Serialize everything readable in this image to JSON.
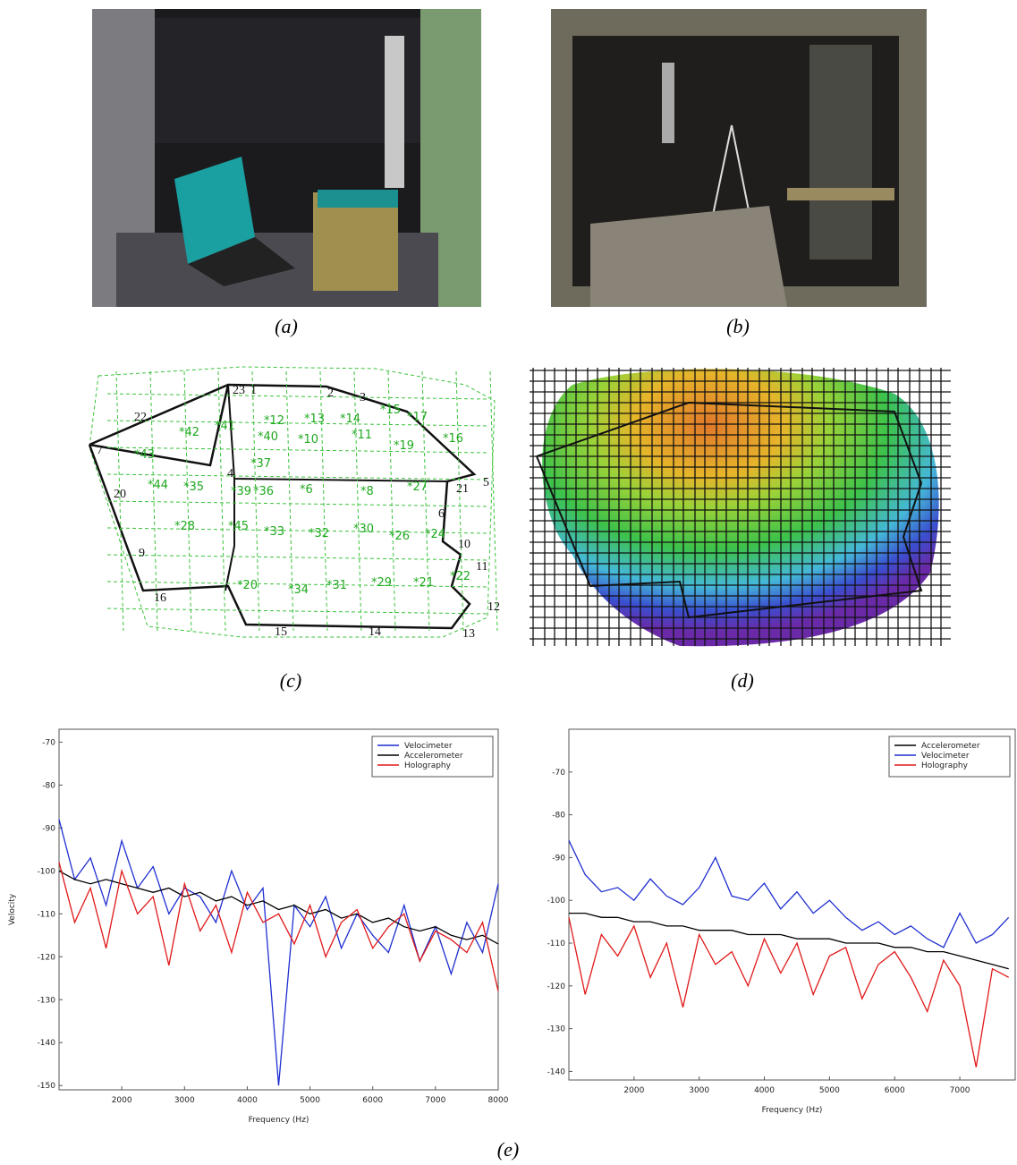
{
  "figure": {
    "panels": [
      {
        "caption": "(a)"
      },
      {
        "caption": "(b)"
      },
      {
        "caption": "(c)",
        "point_labels": [
          "22",
          "23",
          "1",
          "2",
          "3",
          "4",
          "5",
          "6",
          "7",
          "9",
          "10",
          "11",
          "12",
          "13",
          "14",
          "15",
          "16",
          "20",
          "21"
        ],
        "sensor_labels": [
          "*42",
          "*41",
          "*12",
          "*13",
          "*14",
          "*15",
          "*17",
          "*16",
          "*43",
          "*40",
          "*10",
          "*11",
          "*19",
          "*37",
          "*44",
          "*35",
          "*39",
          "*36",
          "*6",
          "*8",
          "*27",
          "*28",
          "*45",
          "*33",
          "*32",
          "*30",
          "*26",
          "*24",
          "*20",
          "*34",
          "*31",
          "*29",
          "*21",
          "*22"
        ]
      },
      {
        "caption": "(d)"
      }
    ],
    "caption": "(e)"
  },
  "chart_data": [
    {
      "type": "line",
      "ylabel": "Velocity",
      "xlabel": "Frequency (Hz)",
      "xlim": [
        1000,
        8000
      ],
      "ylim": [
        -151,
        -67
      ],
      "xticks": [
        2000,
        3000,
        4000,
        5000,
        6000,
        7000,
        8000
      ],
      "yticks": [
        -70,
        -80,
        -90,
        -100,
        -110,
        -120,
        -130,
        -140,
        -150
      ],
      "legend": "upper right",
      "x": [
        1000,
        1250,
        1500,
        1750,
        2000,
        2250,
        2500,
        2750,
        3000,
        3250,
        3500,
        3750,
        4000,
        4250,
        4500,
        4750,
        5000,
        5250,
        5500,
        5750,
        6000,
        6250,
        6500,
        6750,
        7000,
        7250,
        7500,
        7750,
        8000
      ],
      "series": [
        {
          "name": "Velocimeter",
          "color": "#1f2fd0",
          "values": [
            -88,
            -102,
            -97,
            -108,
            -93,
            -104,
            -99,
            -110,
            -104,
            -106,
            -112,
            -100,
            -109,
            -104,
            -150,
            -108,
            -113,
            -106,
            -118,
            -110,
            -115,
            -119,
            -108,
            -121,
            -113,
            -124,
            -112,
            -119,
            -103
          ]
        },
        {
          "name": "Accelerometer",
          "color": "#000000",
          "values": [
            -100,
            -102,
            -103,
            -102,
            -103,
            -104,
            -105,
            -104,
            -106,
            -105,
            -107,
            -106,
            -108,
            -107,
            -109,
            -108,
            -110,
            -109,
            -111,
            -110,
            -112,
            -111,
            -113,
            -114,
            -113,
            -115,
            -116,
            -115,
            -117
          ]
        },
        {
          "name": "Holography",
          "color": "#e01818",
          "values": [
            -98,
            -112,
            -104,
            -118,
            -100,
            -110,
            -106,
            -122,
            -103,
            -114,
            -108,
            -119,
            -105,
            -112,
            -110,
            -117,
            -108,
            -120,
            -112,
            -109,
            -118,
            -113,
            -110,
            -121,
            -114,
            -116,
            -119,
            -112,
            -128
          ]
        }
      ]
    },
    {
      "type": "line",
      "xlabel": "Frequency (Hz)",
      "xlim": [
        1000,
        7850
      ],
      "ylim": [
        -142,
        -60
      ],
      "xticks": [
        2000,
        3000,
        4000,
        5000,
        6000,
        7000
      ],
      "yticks": [
        -70,
        -80,
        -90,
        -100,
        -110,
        -120,
        -130,
        -140
      ],
      "legend": "upper right",
      "x": [
        1000,
        1250,
        1500,
        1750,
        2000,
        2250,
        2500,
        2750,
        3000,
        3250,
        3500,
        3750,
        4000,
        4250,
        4500,
        4750,
        5000,
        5250,
        5500,
        5750,
        6000,
        6250,
        6500,
        6750,
        7000,
        7250,
        7500,
        7750
      ],
      "series": [
        {
          "name": "Accelerometer",
          "color": "#000000",
          "values": [
            -103,
            -103,
            -104,
            -104,
            -105,
            -105,
            -106,
            -106,
            -107,
            -107,
            -107,
            -108,
            -108,
            -108,
            -109,
            -109,
            -109,
            -110,
            -110,
            -110,
            -111,
            -111,
            -112,
            -112,
            -113,
            -114,
            -115,
            -116
          ]
        },
        {
          "name": "Velocimeter",
          "color": "#1f2fd0",
          "values": [
            -86,
            -94,
            -98,
            -97,
            -100,
            -95,
            -99,
            -101,
            -97,
            -90,
            -99,
            -100,
            -96,
            -102,
            -98,
            -103,
            -100,
            -104,
            -107,
            -105,
            -108,
            -106,
            -109,
            -111,
            -103,
            -110,
            -108,
            -104
          ]
        },
        {
          "name": "Holography",
          "color": "#e01818",
          "values": [
            -104,
            -122,
            -108,
            -113,
            -106,
            -118,
            -110,
            -125,
            -108,
            -115,
            -112,
            -120,
            -109,
            -117,
            -110,
            -122,
            -113,
            -111,
            -123,
            -115,
            -112,
            -118,
            -126,
            -114,
            -120,
            -139,
            -116,
            -118
          ]
        }
      ]
    }
  ]
}
